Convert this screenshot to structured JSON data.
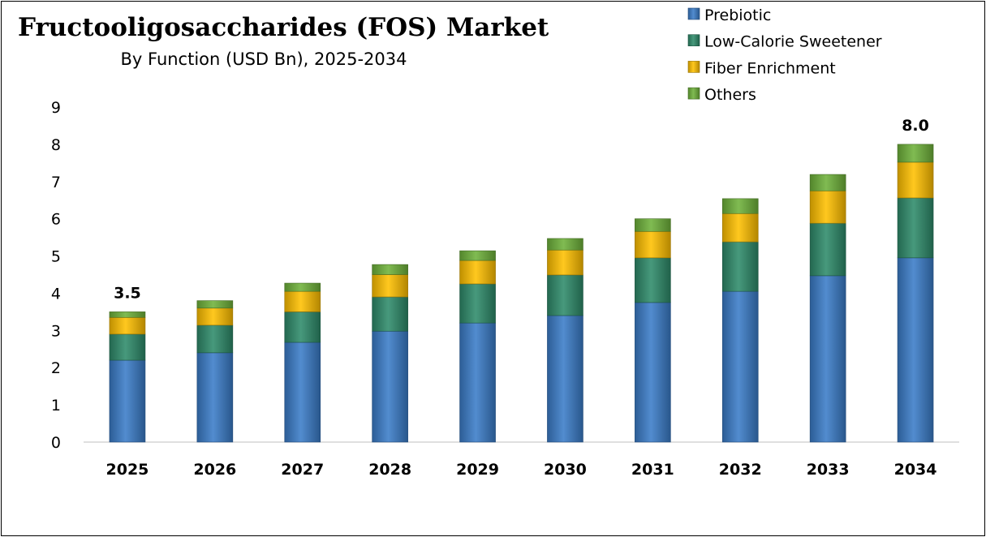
{
  "chart_data": {
    "type": "bar",
    "stacked": true,
    "title": "Fructooligosaccharides (FOS) Market",
    "subtitle": "By Function (USD Bn), 2025-2034",
    "xlabel": "",
    "ylabel": "",
    "ylim": [
      0,
      9
    ],
    "yticks": [
      "0",
      "1",
      "2",
      "3",
      "4",
      "5",
      "6",
      "7",
      "8",
      "9"
    ],
    "grid": false,
    "legend_position": "top-right",
    "categories": [
      "2025",
      "2026",
      "2027",
      "2028",
      "2029",
      "2030",
      "2031",
      "2032",
      "2033",
      "2034"
    ],
    "series": [
      {
        "name": "Prebiotic",
        "color": "#3a7cc8",
        "values": [
          2.2,
          2.4,
          2.68,
          2.98,
          3.2,
          3.4,
          3.75,
          4.05,
          4.47,
          4.95
        ]
      },
      {
        "name": "Low-Calorie Sweetener",
        "color": "#2e8b6a",
        "values": [
          0.7,
          0.74,
          0.82,
          0.92,
          1.05,
          1.09,
          1.2,
          1.33,
          1.41,
          1.61
        ]
      },
      {
        "name": "Fiber Enrichment",
        "color": "#ffc000",
        "values": [
          0.45,
          0.46,
          0.55,
          0.6,
          0.63,
          0.67,
          0.71,
          0.76,
          0.87,
          0.96
        ]
      },
      {
        "name": "Others",
        "color": "#6fb23a",
        "values": [
          0.15,
          0.2,
          0.22,
          0.27,
          0.26,
          0.31,
          0.34,
          0.4,
          0.44,
          0.48
        ]
      }
    ],
    "annotations": [
      {
        "category": "2025",
        "text": "3.5"
      },
      {
        "category": "2034",
        "text": "8.0"
      }
    ]
  }
}
